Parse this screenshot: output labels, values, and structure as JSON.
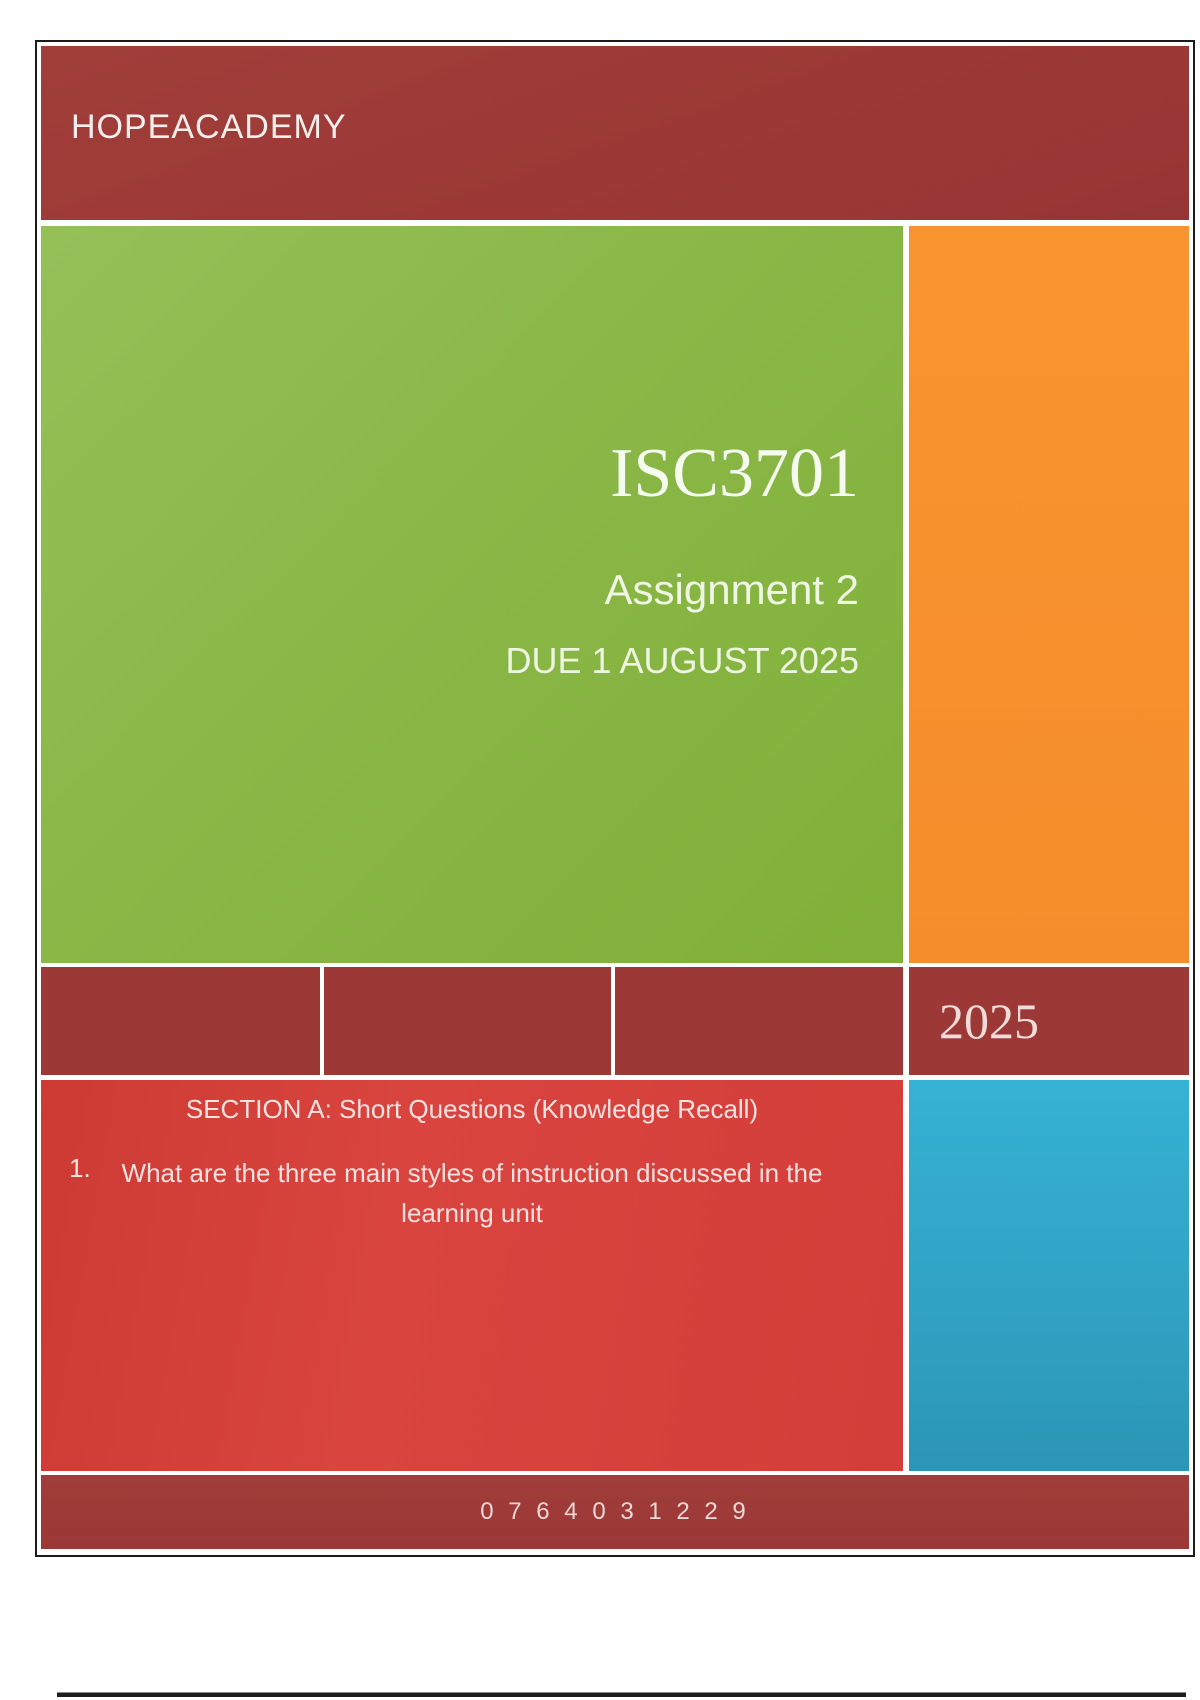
{
  "header": {
    "brand": "HOPEACADEMY"
  },
  "hero": {
    "course_code": "ISC3701",
    "assignment": "Assignment 2",
    "due": "DUE 1 AUGUST 2025"
  },
  "year_band": {
    "year": "2025"
  },
  "section": {
    "heading": "SECTION A: Short Questions (Knowledge Recall)",
    "question_number": "1.",
    "question_text": "What are the three main styles of instruction discussed in the learning unit"
  },
  "footer": {
    "phone": "0 7 6 4 0 3 1 2 2 9"
  },
  "colors": {
    "maroon": "#9C3936",
    "green": "#8AB747",
    "orange": "#F78E2D",
    "red": "#D5403C",
    "blue": "#31A9CB",
    "page_border": "#1B1B1B",
    "text_light": "#F3F8EA"
  }
}
